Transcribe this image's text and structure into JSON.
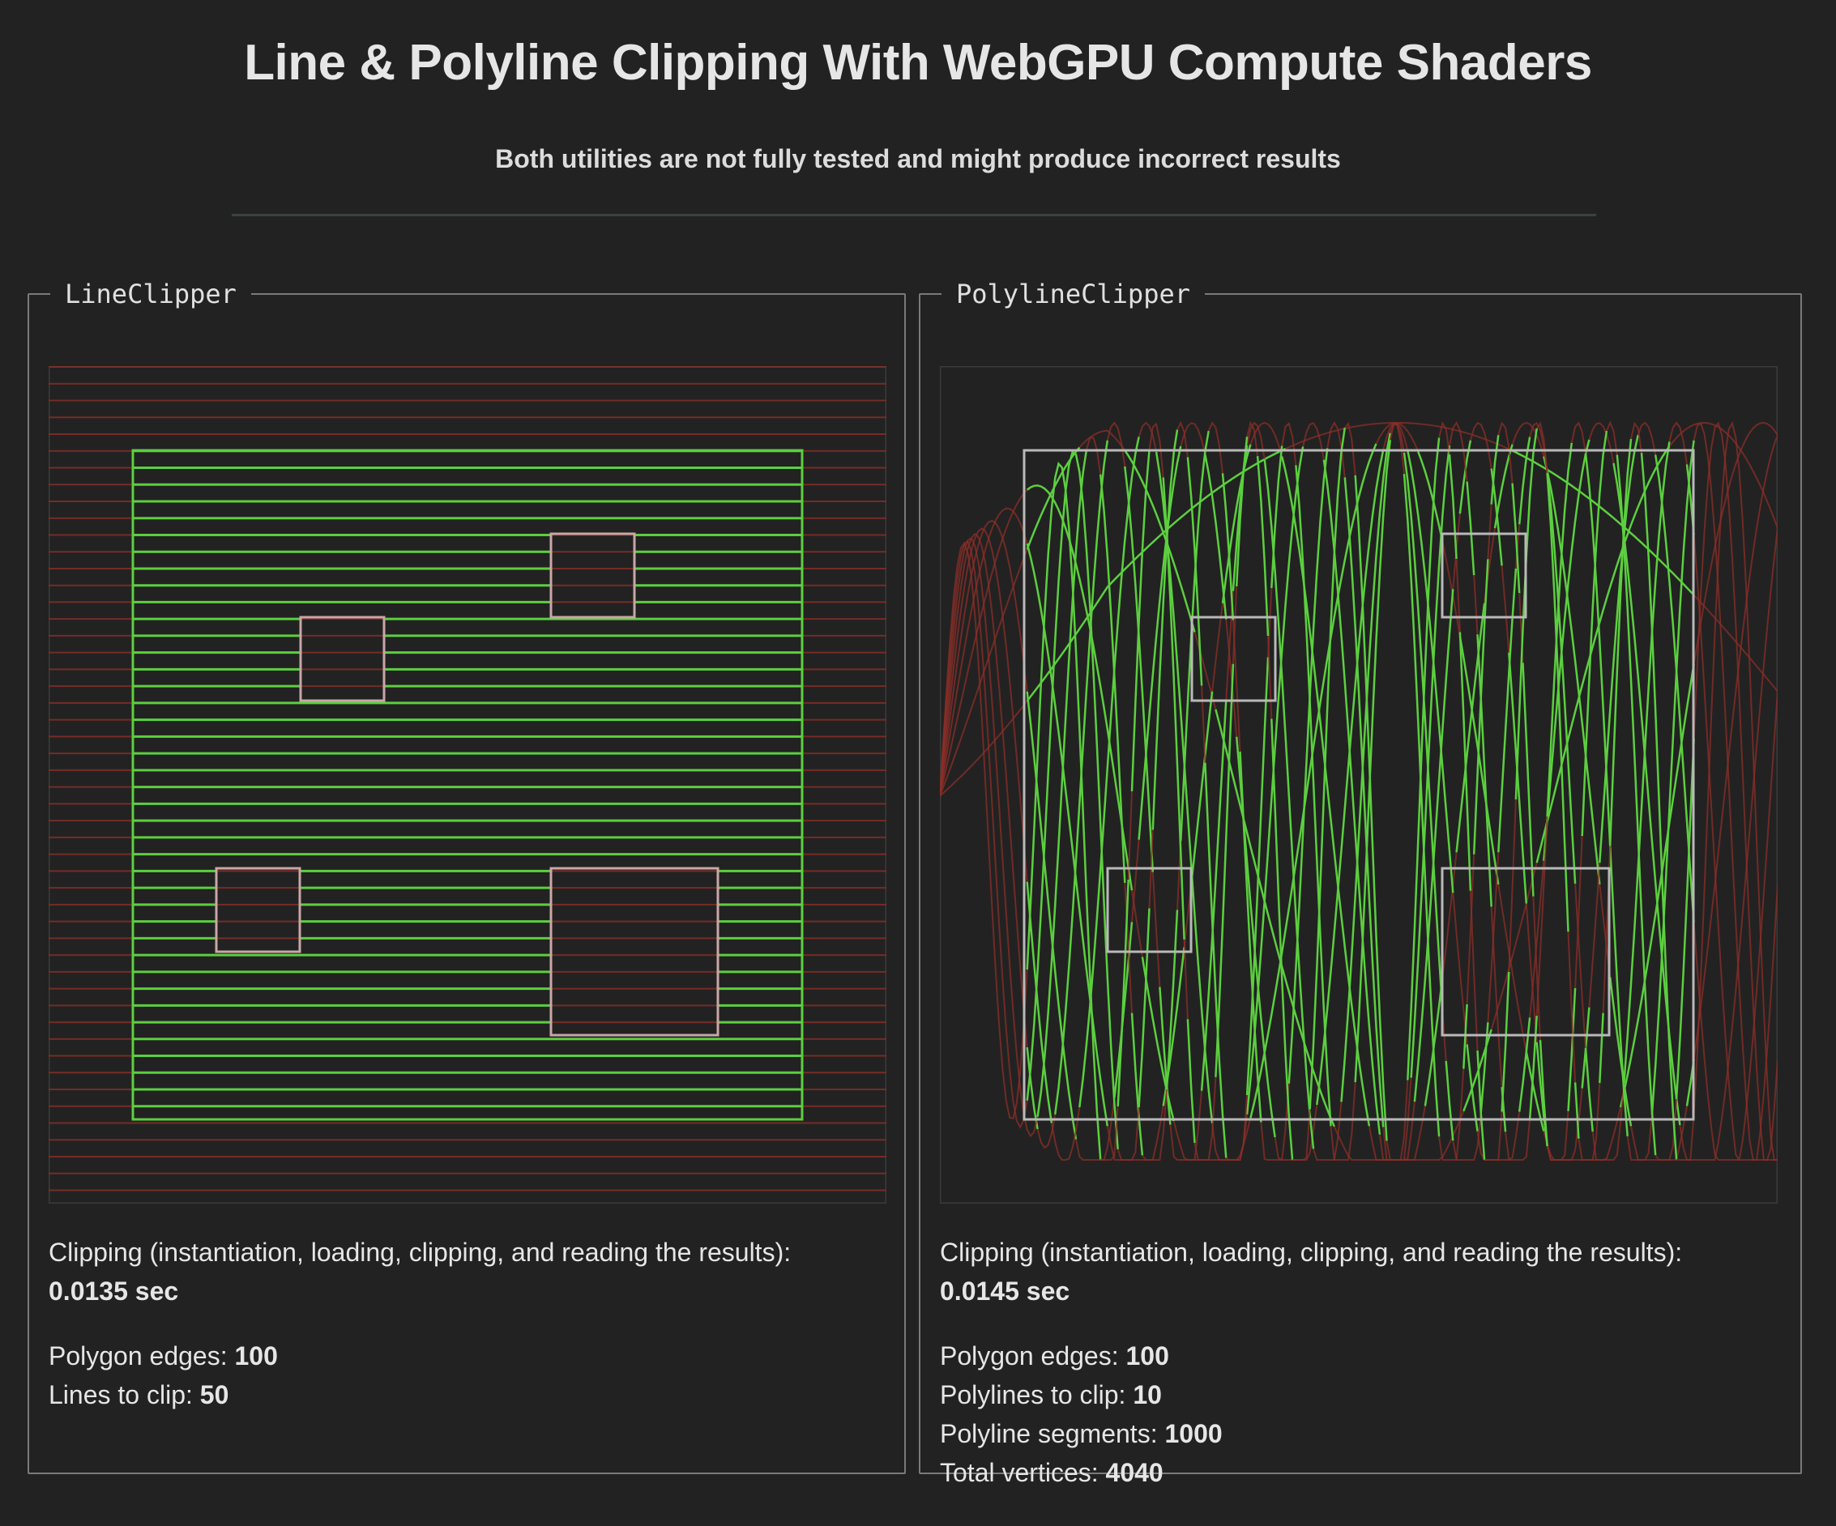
{
  "header": {
    "title": "Line & Polyline Clipping With WebGPU Compute Shaders",
    "subtitle": "Both utilities are not fully tested and might produce incorrect results"
  },
  "line_clipper": {
    "legend": "LineClipper",
    "timing_label": "Clipping (instantiation, loading, clipping, and reading the results):",
    "timing_value": "0.0135 sec",
    "stats": [
      {
        "label": "Polygon edges:",
        "value": "100"
      },
      {
        "label": "Lines to clip:",
        "value": "50"
      }
    ],
    "line_count": 50
  },
  "polyline_clipper": {
    "legend": "PolylineClipper",
    "timing_label": "Clipping (instantiation, loading, clipping, and reading the results):",
    "timing_value": "0.0145 sec",
    "stats": [
      {
        "label": "Polygon edges:",
        "value": "100"
      },
      {
        "label": "Polylines to clip:",
        "value": "10"
      },
      {
        "label": "Polyline segments:",
        "value": "1000"
      },
      {
        "label": "Total vertices:",
        "value": "4040"
      }
    ],
    "polyline_count": 10
  },
  "colors": {
    "background": "#222222",
    "inside": "#5ccf3f",
    "outside": "#8b2f28",
    "polygon": "#b9b9b9",
    "hole": "#c9a7a7"
  }
}
